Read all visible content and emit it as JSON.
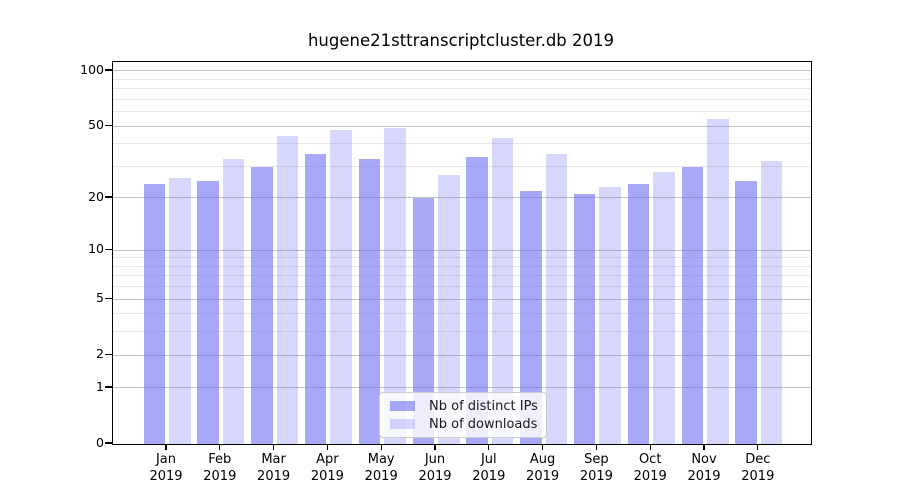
{
  "figure": {
    "title": "hugene21sttranscriptcluster.db 2019"
  },
  "legend": {
    "items": [
      {
        "label": "Nb of distinct IPs",
        "color": "rgba(110,110,243,0.6)"
      },
      {
        "label": "Nb of downloads",
        "color": "rgba(110,110,243,0.28)"
      }
    ]
  },
  "chart_data": {
    "type": "bar",
    "title": "hugene21sttranscriptcluster.db 2019",
    "categories": [
      "Jan",
      "Feb",
      "Mar",
      "Apr",
      "May",
      "Jun",
      "Jul",
      "Aug",
      "Sep",
      "Oct",
      "Nov",
      "Dec"
    ],
    "xtick_year": "2019",
    "series": [
      {
        "name": "Nb of distinct IPs",
        "color": "rgba(110,110,243,0.6)",
        "values": [
          24,
          25,
          30,
          35,
          33,
          20,
          34,
          22,
          21,
          24,
          30,
          25
        ]
      },
      {
        "name": "Nb of downloads",
        "color": "rgba(110,110,243,0.28)",
        "values": [
          26,
          33,
          44,
          48,
          49,
          27,
          43,
          35,
          23,
          28,
          55,
          32
        ]
      }
    ],
    "yscale": "log1p",
    "ylim": [
      0,
      112
    ],
    "yticks": [
      0,
      1,
      2,
      5,
      10,
      20,
      50,
      100
    ],
    "minor_gridlines": [
      3,
      4,
      6,
      7,
      8,
      9,
      30,
      40,
      60,
      70,
      80,
      90
    ],
    "grid": true,
    "legend_position": "lower center",
    "colors": {
      "grid_major": "#c3c3c3",
      "grid_minor": "#e8e8e8",
      "axis": "#000000",
      "text": "#000000"
    }
  }
}
